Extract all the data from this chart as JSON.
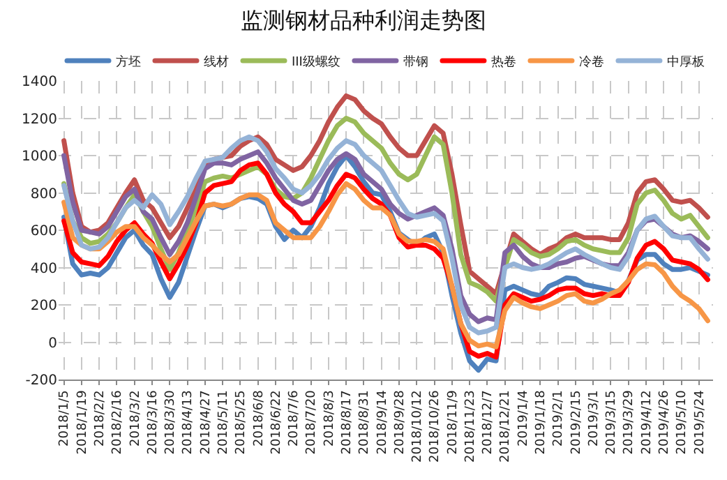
{
  "chart_data": {
    "type": "line",
    "title": "监测钢材品种利润走势图",
    "categories": [
      "2018/1/5",
      null,
      "2018/1/19",
      null,
      "2018/2/2",
      null,
      "2018/2/16",
      null,
      "2018/3/2",
      null,
      "2018/3/16",
      null,
      "2018/3/30",
      null,
      "2018/4/13",
      null,
      "2018/4/27",
      null,
      "2018/5/11",
      null,
      "2018/5/25",
      null,
      "2018/6/8",
      null,
      "2018/6/22",
      null,
      "2018/7/6",
      null,
      "2018/7/20",
      null,
      "2018/8/3",
      null,
      "2018/8/17",
      null,
      "2018/8/31",
      null,
      "2018/9/14",
      null,
      "2018/9/28",
      null,
      "2018/10/12",
      null,
      "2018/10/26",
      null,
      "2018/11/9",
      null,
      "2018/11/23",
      null,
      "2018/12/7",
      null,
      "2018/12/21",
      null,
      "2019/1/4",
      null,
      "2019/1/18",
      null,
      "2019/2/1",
      null,
      "2019/2/15",
      null,
      "2019/3/1",
      null,
      "2019/3/15",
      null,
      "2019/3/29",
      null,
      "2019/4/12",
      null,
      "2019/4/26",
      null,
      "2019/5/10",
      null,
      "2019/5/24",
      null
    ],
    "series": [
      {
        "name": "方坯",
        "color": "#4f81bd",
        "values": [
          670,
          420,
          360,
          370,
          360,
          400,
          480,
          560,
          600,
          520,
          470,
          340,
          240,
          320,
          460,
          600,
          730,
          740,
          720,
          740,
          770,
          780,
          770,
          740,
          620,
          550,
          600,
          560,
          620,
          720,
          850,
          940,
          1000,
          940,
          860,
          800,
          790,
          700,
          585,
          550,
          520,
          560,
          580,
          480,
          250,
          50,
          -100,
          -150,
          -90,
          -100,
          280,
          300,
          280,
          260,
          250,
          300,
          320,
          345,
          340,
          310,
          300,
          290,
          280,
          265,
          330,
          440,
          470,
          470,
          420,
          390,
          390,
          400,
          380,
          360
        ]
      },
      {
        "name": "线材",
        "color": "#c0504d",
        "values": [
          1080,
          800,
          620,
          590,
          600,
          640,
          720,
          800,
          870,
          760,
          720,
          640,
          560,
          620,
          720,
          820,
          940,
          980,
          990,
          1000,
          1050,
          1080,
          1100,
          1060,
          980,
          950,
          920,
          940,
          1000,
          1080,
          1180,
          1260,
          1320,
          1300,
          1240,
          1200,
          1170,
          1100,
          1040,
          1000,
          1000,
          1080,
          1160,
          1120,
          900,
          630,
          380,
          340,
          300,
          260,
          420,
          580,
          540,
          500,
          470,
          500,
          520,
          560,
          580,
          560,
          560,
          560,
          550,
          550,
          640,
          800,
          860,
          870,
          820,
          760,
          750,
          760,
          720,
          670
        ]
      },
      {
        "name": "III级螺纹",
        "color": "#9bbb59",
        "values": [
          850,
          650,
          560,
          530,
          540,
          580,
          640,
          720,
          790,
          700,
          620,
          500,
          390,
          480,
          600,
          720,
          860,
          880,
          890,
          880,
          900,
          920,
          940,
          900,
          820,
          780,
          770,
          800,
          880,
          980,
          1080,
          1160,
          1200,
          1180,
          1120,
          1080,
          1040,
          960,
          900,
          870,
          900,
          1000,
          1100,
          1060,
          800,
          470,
          320,
          300,
          270,
          220,
          400,
          550,
          520,
          480,
          460,
          470,
          500,
          540,
          550,
          520,
          500,
          490,
          480,
          480,
          560,
          740,
          800,
          815,
          760,
          690,
          660,
          680,
          620,
          560
        ]
      },
      {
        "name": "带钢",
        "color": "#8064a2",
        "values": [
          1000,
          750,
          600,
          590,
          580,
          620,
          700,
          780,
          820,
          700,
          660,
          560,
          470,
          540,
          640,
          780,
          930,
          960,
          960,
          950,
          980,
          1000,
          1020,
          960,
          880,
          820,
          760,
          740,
          760,
          840,
          920,
          980,
          1010,
          980,
          900,
          860,
          820,
          740,
          690,
          660,
          680,
          700,
          720,
          680,
          500,
          250,
          150,
          110,
          130,
          120,
          480,
          520,
          460,
          420,
          400,
          400,
          420,
          430,
          450,
          460,
          440,
          420,
          410,
          410,
          480,
          600,
          650,
          660,
          620,
          580,
          560,
          570,
          540,
          500
        ]
      },
      {
        "name": "热卷",
        "color": "#ff0000",
        "values": [
          650,
          480,
          430,
          420,
          410,
          460,
          540,
          600,
          640,
          580,
          530,
          430,
          340,
          420,
          520,
          640,
          800,
          840,
          850,
          860,
          920,
          950,
          960,
          900,
          800,
          740,
          700,
          640,
          640,
          700,
          760,
          840,
          900,
          880,
          820,
          770,
          740,
          680,
          560,
          510,
          520,
          520,
          500,
          450,
          300,
          100,
          -50,
          -75,
          -60,
          -80,
          200,
          260,
          240,
          220,
          230,
          250,
          280,
          290,
          290,
          260,
          250,
          260,
          250,
          250,
          320,
          450,
          520,
          540,
          500,
          440,
          430,
          420,
          390,
          335
        ]
      },
      {
        "name": "冷卷",
        "color": "#f79646",
        "values": [
          750,
          560,
          520,
          500,
          500,
          540,
          590,
          620,
          620,
          560,
          520,
          470,
          430,
          470,
          560,
          650,
          730,
          740,
          730,
          740,
          770,
          790,
          790,
          760,
          640,
          600,
          560,
          560,
          560,
          620,
          700,
          790,
          850,
          820,
          760,
          720,
          720,
          680,
          580,
          540,
          540,
          550,
          540,
          500,
          300,
          100,
          10,
          -20,
          -10,
          -25,
          170,
          240,
          210,
          190,
          180,
          200,
          220,
          250,
          260,
          220,
          210,
          230,
          260,
          280,
          330,
          390,
          420,
          415,
          370,
          300,
          250,
          220,
          180,
          115
        ]
      },
      {
        "name": "中厚板",
        "color": "#95b3d7",
        "values": [
          840,
          650,
          520,
          500,
          510,
          560,
          640,
          720,
          760,
          720,
          790,
          740,
          630,
          700,
          780,
          880,
          970,
          980,
          990,
          1040,
          1080,
          1100,
          1080,
          1020,
          930,
          880,
          820,
          800,
          840,
          900,
          980,
          1040,
          1080,
          1060,
          1000,
          960,
          920,
          840,
          760,
          690,
          670,
          680,
          690,
          650,
          450,
          200,
          80,
          50,
          60,
          80,
          400,
          420,
          400,
          390,
          400,
          420,
          450,
          480,
          500,
          470,
          445,
          420,
          400,
          390,
          460,
          600,
          660,
          675,
          620,
          570,
          560,
          560,
          500,
          445
        ]
      }
    ],
    "ylim": [
      -200,
      1400
    ],
    "yticks": [
      -200,
      0,
      200,
      400,
      600,
      800,
      1000,
      1200,
      1400
    ],
    "grid": true,
    "legend": "top",
    "marker": "none",
    "line_style": "solid"
  }
}
